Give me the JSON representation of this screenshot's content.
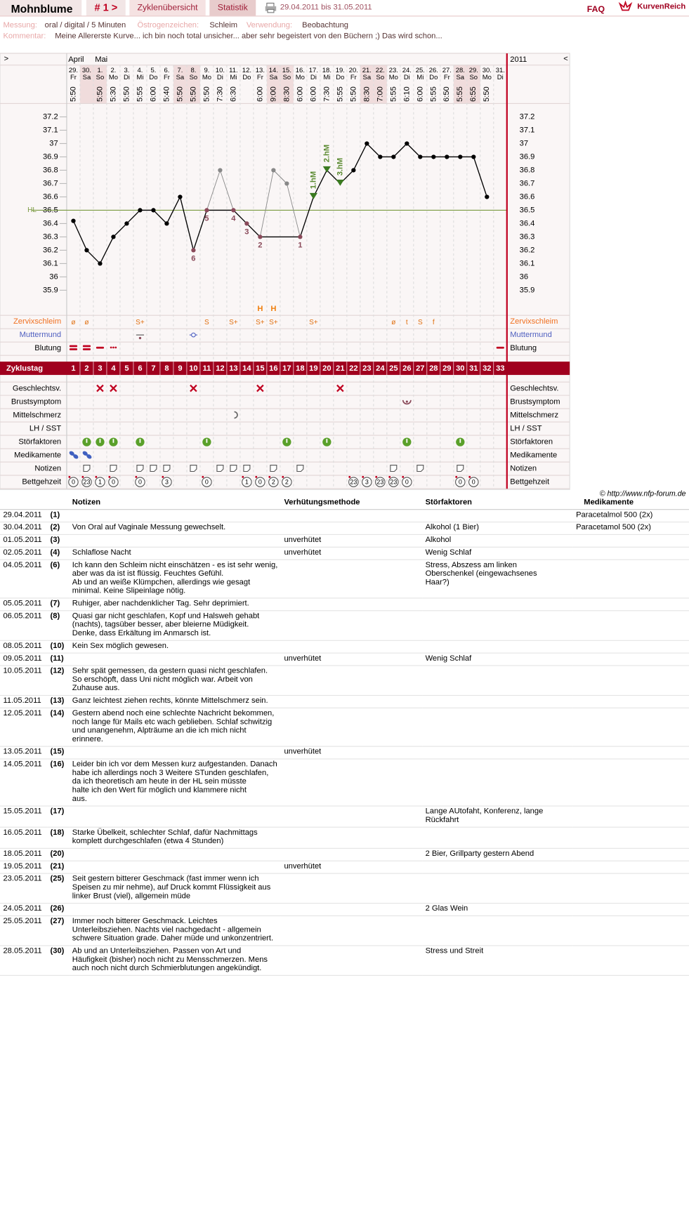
{
  "header": {
    "name": "Mohnblume",
    "cycle": "# 1 >",
    "tab_overview": "Zyklenübersicht",
    "tab_stats": "Statistik",
    "range": "29.04.2011 bis 31.05.2011",
    "faq": "FAQ",
    "brand": "KurvenReich",
    "measure_label": "Messung:",
    "measure": "oral / digital / 5 Minuten",
    "estrogen_label": "Östrogenzeichen:",
    "estrogen": "Schleim",
    "usage_label": "Verwendung:",
    "usage": "Beobachtung",
    "comment_label": "Kommentar:",
    "comment": "Meine Allererste Kurve... ich bin noch total unsicher... aber sehr begeistert von den Büchern ;) Das wird schon..."
  },
  "chart_data": {
    "type": "line",
    "nav_left": ">",
    "nav_right": "<",
    "year": "2011",
    "months": [
      "April",
      null,
      "Mai",
      null,
      null,
      null,
      null,
      null,
      null,
      null,
      null,
      null,
      null,
      null,
      null,
      null,
      null,
      null,
      null,
      null,
      null,
      null,
      null,
      null,
      null,
      null,
      null,
      null,
      null,
      null,
      null,
      null,
      null
    ],
    "categories": [
      "29.",
      "30.",
      "1.",
      "2.",
      "3.",
      "4.",
      "5.",
      "6.",
      "7.",
      "8.",
      "9.",
      "10.",
      "11.",
      "12.",
      "13.",
      "14.",
      "15.",
      "16.",
      "17.",
      "18.",
      "19.",
      "20.",
      "21.",
      "22.",
      "23.",
      "24.",
      "25.",
      "26.",
      "27.",
      "28.",
      "29.",
      "30.",
      "31."
    ],
    "weekdays": [
      "Fr",
      "Sa",
      "So",
      "Mo",
      "Di",
      "Mi",
      "Do",
      "Fr",
      "Sa",
      "So",
      "Mo",
      "Di",
      "Mi",
      "Do",
      "Fr",
      "Sa",
      "So",
      "Mo",
      "Di",
      "Mi",
      "Do",
      "Fr",
      "Sa",
      "So",
      "Mo",
      "Di",
      "Mi",
      "Do",
      "Fr",
      "Sa",
      "So",
      "Mo",
      "Di"
    ],
    "weekend": [
      1,
      2,
      8,
      9,
      15,
      16,
      22,
      23,
      29,
      30
    ],
    "times": [
      "5:50",
      null,
      "5:50",
      "5:30",
      "5:50",
      "5:55",
      "6:00",
      "5:40",
      "5:50",
      "5:50",
      "5:50",
      "7:30",
      "6:30",
      null,
      "6:00",
      "9:00",
      "8:30",
      "6:00",
      "6:00",
      "7:30",
      "5:55",
      "5:50",
      "8:30",
      "7:00",
      "5:55",
      "6:10",
      "6:00",
      "5:55",
      "6:50",
      "5:55",
      "6:55",
      "5:50",
      null
    ],
    "values": [
      36.42,
      36.2,
      36.1,
      36.3,
      36.4,
      36.5,
      36.5,
      36.4,
      36.6,
      36.2,
      36.5,
      36.8,
      36.5,
      36.4,
      36.3,
      36.8,
      36.7,
      36.3,
      36.6,
      36.8,
      36.7,
      36.8,
      37.0,
      36.9,
      36.9,
      37.0,
      36.9,
      36.9,
      36.9,
      36.9,
      36.9,
      36.6,
      null
    ],
    "excluded": [
      11,
      15,
      16
    ],
    "point_labels": [
      null,
      null,
      null,
      null,
      null,
      null,
      null,
      null,
      null,
      "6",
      "5",
      null,
      "4",
      "3",
      "2",
      null,
      null,
      "1",
      null,
      null,
      null,
      null,
      null,
      null,
      null,
      null,
      null,
      null,
      null,
      null,
      null,
      null,
      null
    ],
    "hm_labels": [
      null,
      null,
      null,
      null,
      null,
      null,
      null,
      null,
      null,
      null,
      null,
      null,
      null,
      null,
      null,
      null,
      null,
      null,
      "1.hM",
      "2.hM",
      "3.hM",
      null,
      null,
      null,
      null,
      null,
      null,
      null,
      null,
      null,
      null,
      null,
      null
    ],
    "color": "#000000",
    "excluded_color": "#888888",
    "ylim": [
      35.7,
      37.3
    ],
    "yticks": [
      37.2,
      37.1,
      37,
      36.9,
      36.8,
      36.7,
      36.6,
      36.5,
      36.4,
      36.3,
      36.2,
      36.1,
      36,
      35.9
    ],
    "hl": {
      "value": 36.5,
      "label": "HL"
    },
    "rows_top": [
      "Zervixschleim",
      "Muttermund",
      "Blutung"
    ],
    "mucus": [
      "ø",
      "ø",
      null,
      null,
      null,
      "S+",
      null,
      null,
      null,
      null,
      "S",
      null,
      "S+",
      null,
      "S+",
      "S+",
      null,
      null,
      "S+",
      null,
      null,
      null,
      null,
      null,
      "ø",
      "t",
      "S",
      "f",
      null,
      null,
      null,
      null,
      null
    ],
    "peak": [
      null,
      null,
      null,
      null,
      null,
      null,
      null,
      null,
      null,
      null,
      null,
      null,
      null,
      null,
      "H",
      "H",
      null,
      null,
      null,
      null,
      null,
      null,
      null,
      null,
      null,
      null,
      null,
      null,
      null,
      null,
      null,
      null,
      null
    ],
    "cycle_label": "Zyklustag",
    "cycle_days": [
      1,
      2,
      3,
      4,
      5,
      6,
      7,
      8,
      9,
      10,
      11,
      12,
      13,
      14,
      15,
      16,
      17,
      18,
      19,
      20,
      21,
      22,
      23,
      24,
      25,
      26,
      27,
      28,
      29,
      30,
      31,
      32,
      33
    ],
    "rows_bottom": [
      "Geschlechtsv.",
      "Brustsymptom",
      "Mittelschmerz",
      "LH / SST",
      "Störfaktoren",
      "Medikamente",
      "Notizen",
      "Bettgehzeit"
    ],
    "bedtime": [
      "0",
      "23",
      "1",
      "0",
      null,
      "0",
      null,
      "3",
      null,
      null,
      "0",
      null,
      null,
      "1",
      "0",
      "2",
      "2",
      null,
      null,
      null,
      null,
      "23",
      "3",
      "23",
      "23",
      "0",
      null,
      null,
      null,
      "0",
      "0",
      null,
      null
    ],
    "credit": "© http://www.nfp-forum.de"
  },
  "notes": {
    "headers": [
      "Notizen",
      "Verhütungsmethode",
      "Störfaktoren",
      "Medikamente"
    ],
    "rows": [
      [
        "29.04.2011",
        "(1)",
        null,
        null,
        null,
        "Paracetalmol 500 (2x)"
      ],
      [
        "30.04.2011",
        "(2)",
        "Von Oral auf Vaginale Messung gewechselt.",
        null,
        "Alkohol (1 Bier)",
        "Paracetamol 500 (2x)"
      ],
      [
        "01.05.2011",
        "(3)",
        null,
        "unverhütet",
        "Alkohol",
        null
      ],
      [
        "02.05.2011",
        "(4)",
        "Schlaflose Nacht",
        "unverhütet",
        "Wenig Schlaf",
        null
      ],
      [
        "04.05.2011",
        "(6)",
        "Ich kann den Schleim nicht einschätzen - es ist sehr wenig, aber was da ist ist flüssig. Feuchtes Gefühl.\nAb und an weiße Klümpchen, allerdings wie gesagt minimal. Keine Slipeinlage nötig.",
        null,
        "Stress, Abszess am linken Oberschenkel (eingewachsenes Haar?)",
        null
      ],
      [
        "05.05.2011",
        "(7)",
        "Ruhiger, aber nachdenklicher Tag. Sehr deprimiert.",
        null,
        null,
        null
      ],
      [
        "06.05.2011",
        "(8)",
        "Quasi gar nicht geschlafen, Kopf und Halsweh gehabt (nachts), tagsüber besser, aber bleierne Müdigkeit.\nDenke, dass Erkältung im Anmarsch ist.",
        null,
        null,
        null
      ],
      [
        "08.05.2011",
        "(10)",
        "Kein Sex möglich gewesen.",
        null,
        null,
        null
      ],
      [
        "09.05.2011",
        "(11)",
        null,
        "unverhütet",
        "Wenig Schlaf",
        null
      ],
      [
        "10.05.2011",
        "(12)",
        "Sehr spät gemessen, da gestern quasi nicht geschlafen.\nSo erschöpft, dass Uni nicht möglich war. Arbeit von Zuhause aus.",
        null,
        null,
        null
      ],
      [
        "11.05.2011",
        "(13)",
        "Ganz leichtest ziehen rechts, könnte Mittelschmerz sein.",
        null,
        null,
        null
      ],
      [
        "12.05.2011",
        "(14)",
        "Gestern abend noch eine schlechte Nachricht bekommen, noch lange für Mails etc wach geblieben. Schlaf schwitzig und unangenehm, Alpträume an die ich mich nicht erinnere.",
        null,
        null,
        null
      ],
      [
        "13.05.2011",
        "(15)",
        null,
        "unverhütet",
        null,
        null
      ],
      [
        "14.05.2011",
        "(16)",
        "Leider bin ich vor dem Messen kurz aufgestanden. Danach habe ich allerdings noch 3 Weitere STunden geschlafen, da ich theoretisch am heute in der HL sein müsste\nhalte ich den Wert für möglich und klammere nicht\naus.",
        null,
        null,
        null
      ],
      [
        "15.05.2011",
        "(17)",
        null,
        null,
        "Lange AUtofaht, Konferenz, lange Rückfahrt",
        null
      ],
      [
        "16.05.2011",
        "(18)",
        "Starke Übelkeit, schlechter Schlaf, dafür Nachmittags komplett durchgeschlafen (etwa 4 Stunden)",
        null,
        null,
        null
      ],
      [
        "18.05.2011",
        "(20)",
        null,
        null,
        "2 Bier, Grillparty gestern Abend",
        null
      ],
      [
        "19.05.2011",
        "(21)",
        null,
        "unverhütet",
        null,
        null
      ],
      [
        "23.05.2011",
        "(25)",
        "Seit gestern bitterer Geschmack (fast immer wenn ich Speisen zu mir nehme), auf Druck kommt Flüssigkeit aus linker Brust (viel), allgemein müde",
        null,
        null,
        null
      ],
      [
        "24.05.2011",
        "(26)",
        null,
        null,
        "2 Glas Wein",
        null
      ],
      [
        "25.05.2011",
        "(27)",
        "Immer noch bitterer Geschmack. Leichtes Unterleibsziehen. Nachts viel nachgedacht - allgemein schwere Situation grade. Daher müde und unkonzentriert.",
        null,
        null,
        null
      ],
      [
        "28.05.2011",
        "(30)",
        "Ab und an Unterleibsziehen. Passen von Art und Häufigkeit (bisher) noch nicht zu Mensschmerzen. Mens auch noch nicht durch Schmierblutungen angekündigt.",
        null,
        "Stress und Streit",
        null
      ]
    ]
  }
}
